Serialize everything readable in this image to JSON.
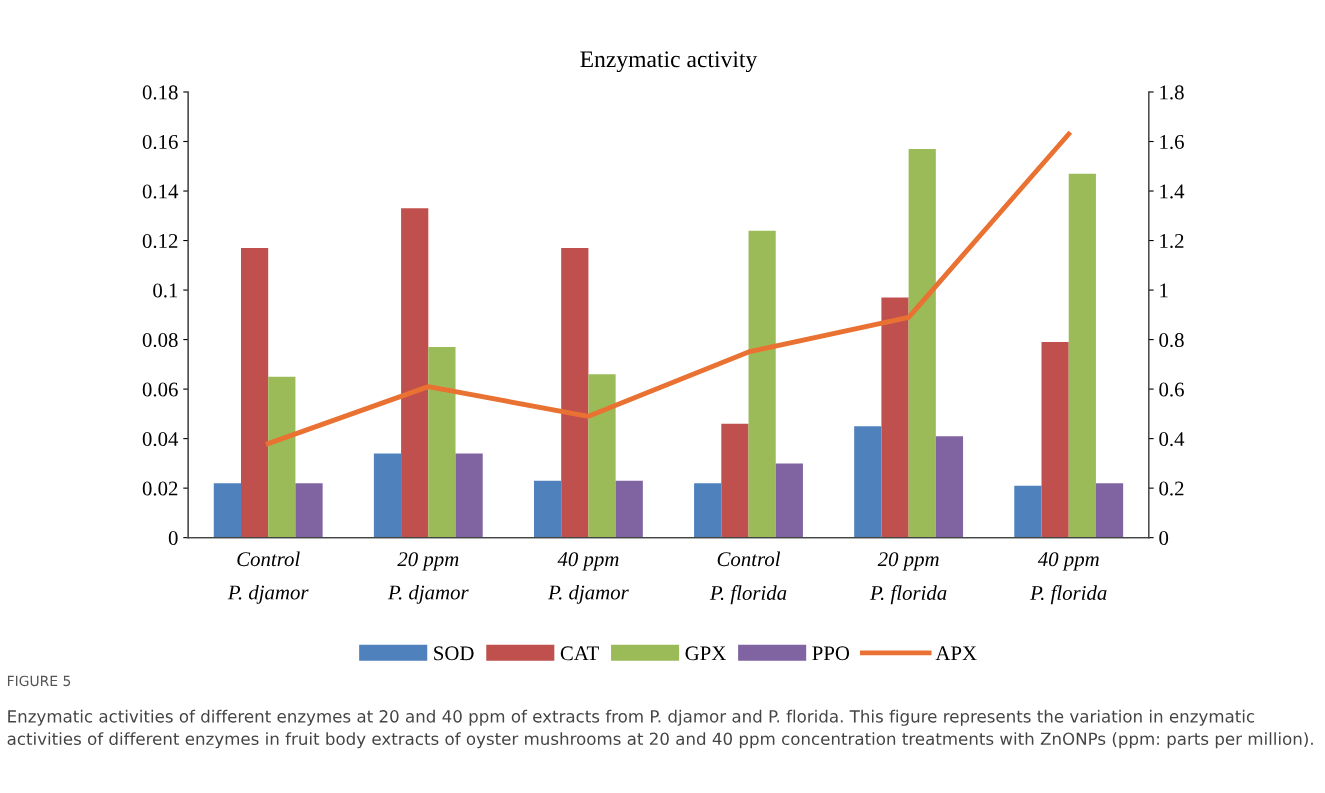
{
  "chart_data": {
    "type": "bar",
    "title": "Enzymatic activity",
    "categories": [
      "Control\nP. djamor",
      "20 ppm\nP. djamor",
      "40 ppm\nP. djamor",
      "Control\nP. florida",
      "20 ppm\nP. florida",
      "40 ppm\nP. florida"
    ],
    "series": [
      {
        "name": "SOD",
        "color": "#4f81bd",
        "values": [
          0.022,
          0.034,
          0.023,
          0.022,
          0.045,
          0.021
        ]
      },
      {
        "name": "CAT",
        "color": "#c0504d",
        "values": [
          0.117,
          0.133,
          0.117,
          0.046,
          0.097,
          0.079
        ]
      },
      {
        "name": "GPX",
        "color": "#9bbb59",
        "values": [
          0.065,
          0.077,
          0.066,
          0.124,
          0.157,
          0.147
        ]
      },
      {
        "name": "PPO",
        "color": "#8064a2",
        "values": [
          0.022,
          0.034,
          0.023,
          0.03,
          0.041,
          0.022
        ]
      },
      {
        "name": "APX",
        "color": "#e97132",
        "type": "line",
        "axis": "y2",
        "values": [
          0.38,
          0.61,
          0.49,
          0.75,
          0.89,
          1.63
        ]
      }
    ],
    "ylim": [
      0,
      0.18
    ],
    "yticks": [
      0,
      0.02,
      0.04,
      0.06,
      0.08,
      0.1,
      0.12,
      0.14,
      0.16,
      0.18
    ],
    "y2lim": [
      0,
      1.8
    ],
    "y2ticks": [
      0,
      0.2,
      0.4,
      0.6,
      0.8,
      1,
      1.2,
      1.4,
      1.6,
      1.8
    ],
    "grid": false,
    "legend": "bottom",
    "marker": "none",
    "line_style": "solid",
    "annotations": [
      "FIGURE 5",
      "Enzymatic activities of different enzymes at 20 and 40 ppm of extracts from P. djamor and P. florida. This figure represents the variation in enzymatic activities of different enzymes in fruit body extracts of oyster mushrooms at 20 and 40 ppm concentration treatments with ZnONPs (ppm: parts per million)."
    ]
  }
}
